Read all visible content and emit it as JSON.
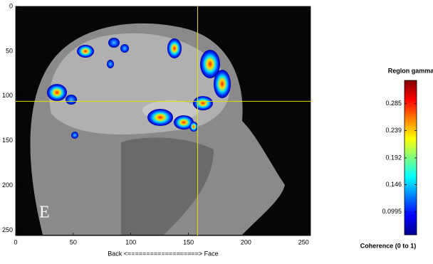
{
  "chart_data": {
    "type": "image",
    "panel_label": "E",
    "xlabel": "Back <===================> Face",
    "xlim": [
      0,
      256
    ],
    "ylim": [
      0,
      256
    ],
    "xticks": [
      0,
      50,
      100,
      150,
      200,
      250
    ],
    "yticks": [
      0,
      50,
      100,
      150,
      200,
      250
    ],
    "crosshair": {
      "x": 158,
      "y": 106,
      "color": "#e8e000"
    },
    "colorbar": {
      "title": "Region gamma",
      "label": "Coherence (0 to 1)",
      "lim": [
        0.06,
        0.325
      ],
      "ticks": [
        0.0995,
        0.146,
        0.192,
        0.239,
        0.285
      ]
    }
  }
}
